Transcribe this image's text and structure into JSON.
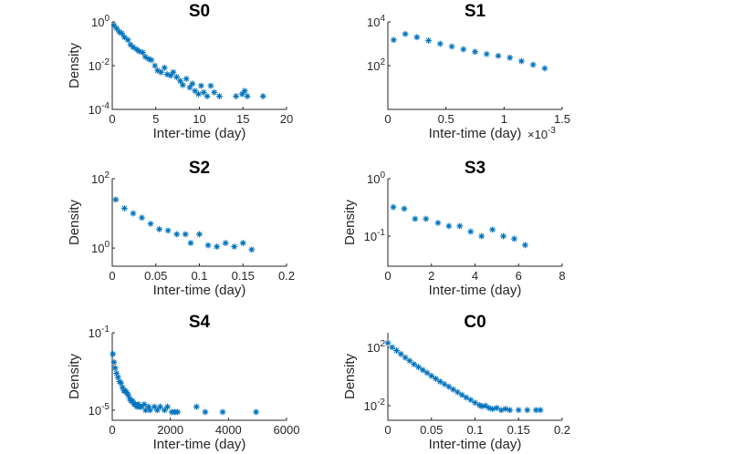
{
  "chart_data": [
    {
      "id": "p0",
      "type": "scatter",
      "title": "S0",
      "xlabel": "Inter-time (day)",
      "ylabel": "Density",
      "xscale": "linear",
      "yscale": "log",
      "xlim": [
        0,
        20
      ],
      "ylim": [
        0.0001,
        1
      ],
      "xticks": [
        0,
        5,
        10,
        15,
        20
      ],
      "xtick_labels": [
        "0",
        "5",
        "10",
        "15",
        "20"
      ],
      "yticks": [
        0.0001,
        0.01,
        1
      ],
      "ytick_bases": [
        "10",
        "10",
        "10"
      ],
      "ytick_exps": [
        "-4",
        "-2",
        "0"
      ],
      "x_multiplier": null,
      "marker": "*",
      "color": "#0072BD",
      "points": [
        [
          0.2,
          0.7
        ],
        [
          0.5,
          0.5
        ],
        [
          0.8,
          0.35
        ],
        [
          1.1,
          0.3
        ],
        [
          1.4,
          0.2
        ],
        [
          1.8,
          0.15
        ],
        [
          2.1,
          0.09
        ],
        [
          2.4,
          0.07
        ],
        [
          2.8,
          0.055
        ],
        [
          3.1,
          0.045
        ],
        [
          3.5,
          0.04
        ],
        [
          3.8,
          0.025
        ],
        [
          4.2,
          0.02
        ],
        [
          4.5,
          0.018
        ],
        [
          4.9,
          0.01
        ],
        [
          5.2,
          0.006
        ],
        [
          5.6,
          0.005
        ],
        [
          6,
          0.008
        ],
        [
          6.3,
          0.004
        ],
        [
          6.7,
          0.0035
        ],
        [
          7,
          0.005
        ],
        [
          7.4,
          0.003
        ],
        [
          7.8,
          0.002
        ],
        [
          8.1,
          0.0013
        ],
        [
          8.5,
          0.0025
        ],
        [
          8.9,
          0.001
        ],
        [
          9.2,
          0.0015
        ],
        [
          9.5,
          0.0007
        ],
        [
          9.9,
          0.0005
        ],
        [
          10.2,
          0.0012
        ],
        [
          10.5,
          0.0006
        ],
        [
          10.9,
          0.0004
        ],
        [
          11.3,
          0.0012
        ],
        [
          11.7,
          0.0006
        ],
        [
          12.3,
          0.0004
        ],
        [
          14.2,
          0.0004
        ],
        [
          14.9,
          0.0005
        ],
        [
          15.2,
          0.0007
        ],
        [
          15.5,
          0.0004
        ],
        [
          17.3,
          0.0004
        ]
      ]
    },
    {
      "id": "p1",
      "type": "scatter",
      "title": "S1",
      "xlabel": "Inter-time (day)",
      "ylabel": "",
      "xscale": "linear",
      "yscale": "log",
      "xlim": [
        0,
        1.5
      ],
      "ylim": [
        1,
        10000
      ],
      "xticks": [
        0,
        0.5,
        1,
        1.5
      ],
      "xtick_labels": [
        "0",
        "0.5",
        "1",
        "1.5"
      ],
      "yticks": [
        100,
        10000
      ],
      "ytick_bases": [
        "10",
        "10"
      ],
      "ytick_exps": [
        "2",
        "4"
      ],
      "x_multiplier": {
        "base": "×10",
        "exp": "-3"
      },
      "marker": "*",
      "color": "#0072BD",
      "points": [
        [
          0.05,
          1500
        ],
        [
          0.15,
          2800
        ],
        [
          0.25,
          2000
        ],
        [
          0.35,
          1400
        ],
        [
          0.45,
          1000
        ],
        [
          0.55,
          750
        ],
        [
          0.65,
          560
        ],
        [
          0.75,
          430
        ],
        [
          0.85,
          340
        ],
        [
          0.95,
          280
        ],
        [
          1.05,
          230
        ],
        [
          1.15,
          160
        ],
        [
          1.25,
          110
        ],
        [
          1.35,
          75
        ]
      ]
    },
    {
      "id": "p2",
      "type": "scatter",
      "title": "S2",
      "xlabel": "Inter-time (day)",
      "ylabel": "Density",
      "xscale": "linear",
      "yscale": "log",
      "xlim": [
        0,
        0.2
      ],
      "ylim": [
        0.3,
        100
      ],
      "xticks": [
        0,
        0.05,
        0.1,
        0.15,
        0.2
      ],
      "xtick_labels": [
        "0",
        "0.05",
        "0.1",
        "0.15",
        "0.2"
      ],
      "yticks": [
        1,
        100
      ],
      "ytick_bases": [
        "10",
        "10"
      ],
      "ytick_exps": [
        "0",
        "2"
      ],
      "x_multiplier": null,
      "marker": "*",
      "color": "#0072BD",
      "points": [
        [
          0.004,
          25
        ],
        [
          0.014,
          14
        ],
        [
          0.024,
          10
        ],
        [
          0.034,
          7.5
        ],
        [
          0.044,
          5
        ],
        [
          0.054,
          3.5
        ],
        [
          0.064,
          3.2
        ],
        [
          0.074,
          2.5
        ],
        [
          0.084,
          2.5
        ],
        [
          0.09,
          1.4
        ],
        [
          0.1,
          2.5
        ],
        [
          0.11,
          1.2
        ],
        [
          0.12,
          1.1
        ],
        [
          0.13,
          1.4
        ],
        [
          0.14,
          1.1
        ],
        [
          0.15,
          1.4
        ],
        [
          0.16,
          0.9
        ]
      ]
    },
    {
      "id": "p3",
      "type": "scatter",
      "title": "S3",
      "xlabel": "Inter-time (day)",
      "ylabel": "Density",
      "xscale": "linear",
      "yscale": "log",
      "xlim": [
        0,
        8
      ],
      "ylim": [
        0.03,
        1
      ],
      "xticks": [
        0,
        2,
        4,
        6,
        8
      ],
      "xtick_labels": [
        "0",
        "2",
        "4",
        "6",
        "8"
      ],
      "yticks": [
        0.1,
        1
      ],
      "ytick_bases": [
        "10",
        "10"
      ],
      "ytick_exps": [
        "-1",
        "0"
      ],
      "x_multiplier": null,
      "marker": "*",
      "color": "#0072BD",
      "points": [
        [
          0.25,
          0.32
        ],
        [
          0.75,
          0.3
        ],
        [
          1.25,
          0.2
        ],
        [
          1.75,
          0.2
        ],
        [
          2.3,
          0.17
        ],
        [
          2.8,
          0.15
        ],
        [
          3.3,
          0.15
        ],
        [
          3.8,
          0.12
        ],
        [
          4.3,
          0.1
        ],
        [
          4.8,
          0.13
        ],
        [
          5.3,
          0.1
        ],
        [
          5.8,
          0.09
        ],
        [
          6.3,
          0.07
        ]
      ]
    },
    {
      "id": "p4",
      "type": "scatter",
      "title": "S4",
      "xlabel": "Inter-time (day)",
      "ylabel": "Density",
      "xscale": "linear",
      "yscale": "log",
      "xlim": [
        0,
        6000
      ],
      "ylim": [
        3e-06,
        0.1
      ],
      "xticks": [
        0,
        2000,
        4000,
        6000
      ],
      "xtick_labels": [
        "0",
        "2000",
        "4000",
        "6000"
      ],
      "yticks": [
        1e-05,
        0.1
      ],
      "ytick_bases": [
        "10",
        "10"
      ],
      "ytick_exps": [
        "-5",
        "-1"
      ],
      "x_multiplier": null,
      "marker": "*",
      "color": "#0072BD",
      "points": [
        [
          20,
          0.008
        ],
        [
          60,
          0.003
        ],
        [
          100,
          0.0015
        ],
        [
          150,
          0.0008
        ],
        [
          200,
          0.0005
        ],
        [
          250,
          0.0003
        ],
        [
          300,
          0.00025
        ],
        [
          350,
          0.00015
        ],
        [
          400,
          0.0001
        ],
        [
          450,
          0.0001
        ],
        [
          500,
          8e-05
        ],
        [
          550,
          6e-05
        ],
        [
          600,
          4e-05
        ],
        [
          650,
          3e-05
        ],
        [
          700,
          3e-05
        ],
        [
          750,
          2e-05
        ],
        [
          800,
          2e-05
        ],
        [
          850,
          1.5e-05
        ],
        [
          900,
          2e-05
        ],
        [
          950,
          1.5e-05
        ],
        [
          1000,
          1.5e-05
        ],
        [
          1100,
          2e-05
        ],
        [
          1150,
          1e-05
        ],
        [
          1250,
          1.5e-05
        ],
        [
          1300,
          1e-05
        ],
        [
          1450,
          1.5e-05
        ],
        [
          1550,
          1e-05
        ],
        [
          1650,
          1.5e-05
        ],
        [
          1800,
          1e-05
        ],
        [
          1900,
          1.5e-05
        ],
        [
          2050,
          8e-06
        ],
        [
          2150,
          8e-06
        ],
        [
          2250,
          8e-06
        ],
        [
          2900,
          1.5e-05
        ],
        [
          3200,
          8e-06
        ],
        [
          3800,
          8e-06
        ],
        [
          4950,
          8e-06
        ]
      ]
    },
    {
      "id": "p5",
      "type": "scatter",
      "title": "C0",
      "xlabel": "Inter-time (day)",
      "ylabel": "Density",
      "xscale": "linear",
      "yscale": "log",
      "xlim": [
        0,
        0.2
      ],
      "ylim": [
        0.001,
        1000
      ],
      "xticks": [
        0,
        0.05,
        0.1,
        0.15,
        0.2
      ],
      "xtick_labels": [
        "0",
        "0.05",
        "0.1",
        "0.15",
        "0.2"
      ],
      "yticks": [
        0.01,
        100
      ],
      "ytick_bases": [
        "10",
        "10"
      ],
      "ytick_exps": [
        "-2",
        "2"
      ],
      "x_multiplier": null,
      "marker": "*",
      "color": "#0072BD",
      "points": [
        [
          0,
          200
        ],
        [
          0.005,
          100
        ],
        [
          0.01,
          60
        ],
        [
          0.015,
          35
        ],
        [
          0.02,
          20
        ],
        [
          0.025,
          12
        ],
        [
          0.03,
          7
        ],
        [
          0.035,
          4.5
        ],
        [
          0.04,
          2.8
        ],
        [
          0.045,
          1.8
        ],
        [
          0.05,
          1.1
        ],
        [
          0.055,
          0.7
        ],
        [
          0.06,
          0.45
        ],
        [
          0.065,
          0.3
        ],
        [
          0.07,
          0.2
        ],
        [
          0.075,
          0.13
        ],
        [
          0.08,
          0.085
        ],
        [
          0.085,
          0.055
        ],
        [
          0.09,
          0.036
        ],
        [
          0.095,
          0.025
        ],
        [
          0.1,
          0.016
        ],
        [
          0.105,
          0.011
        ],
        [
          0.108,
          0.009
        ],
        [
          0.112,
          0.01
        ],
        [
          0.116,
          0.007
        ],
        [
          0.12,
          0.006
        ],
        [
          0.125,
          0.007
        ],
        [
          0.13,
          0.005
        ],
        [
          0.135,
          0.006
        ],
        [
          0.14,
          0.005
        ],
        [
          0.15,
          0.005
        ],
        [
          0.16,
          0.005
        ],
        [
          0.17,
          0.005
        ],
        [
          0.175,
          0.005
        ]
      ]
    }
  ]
}
